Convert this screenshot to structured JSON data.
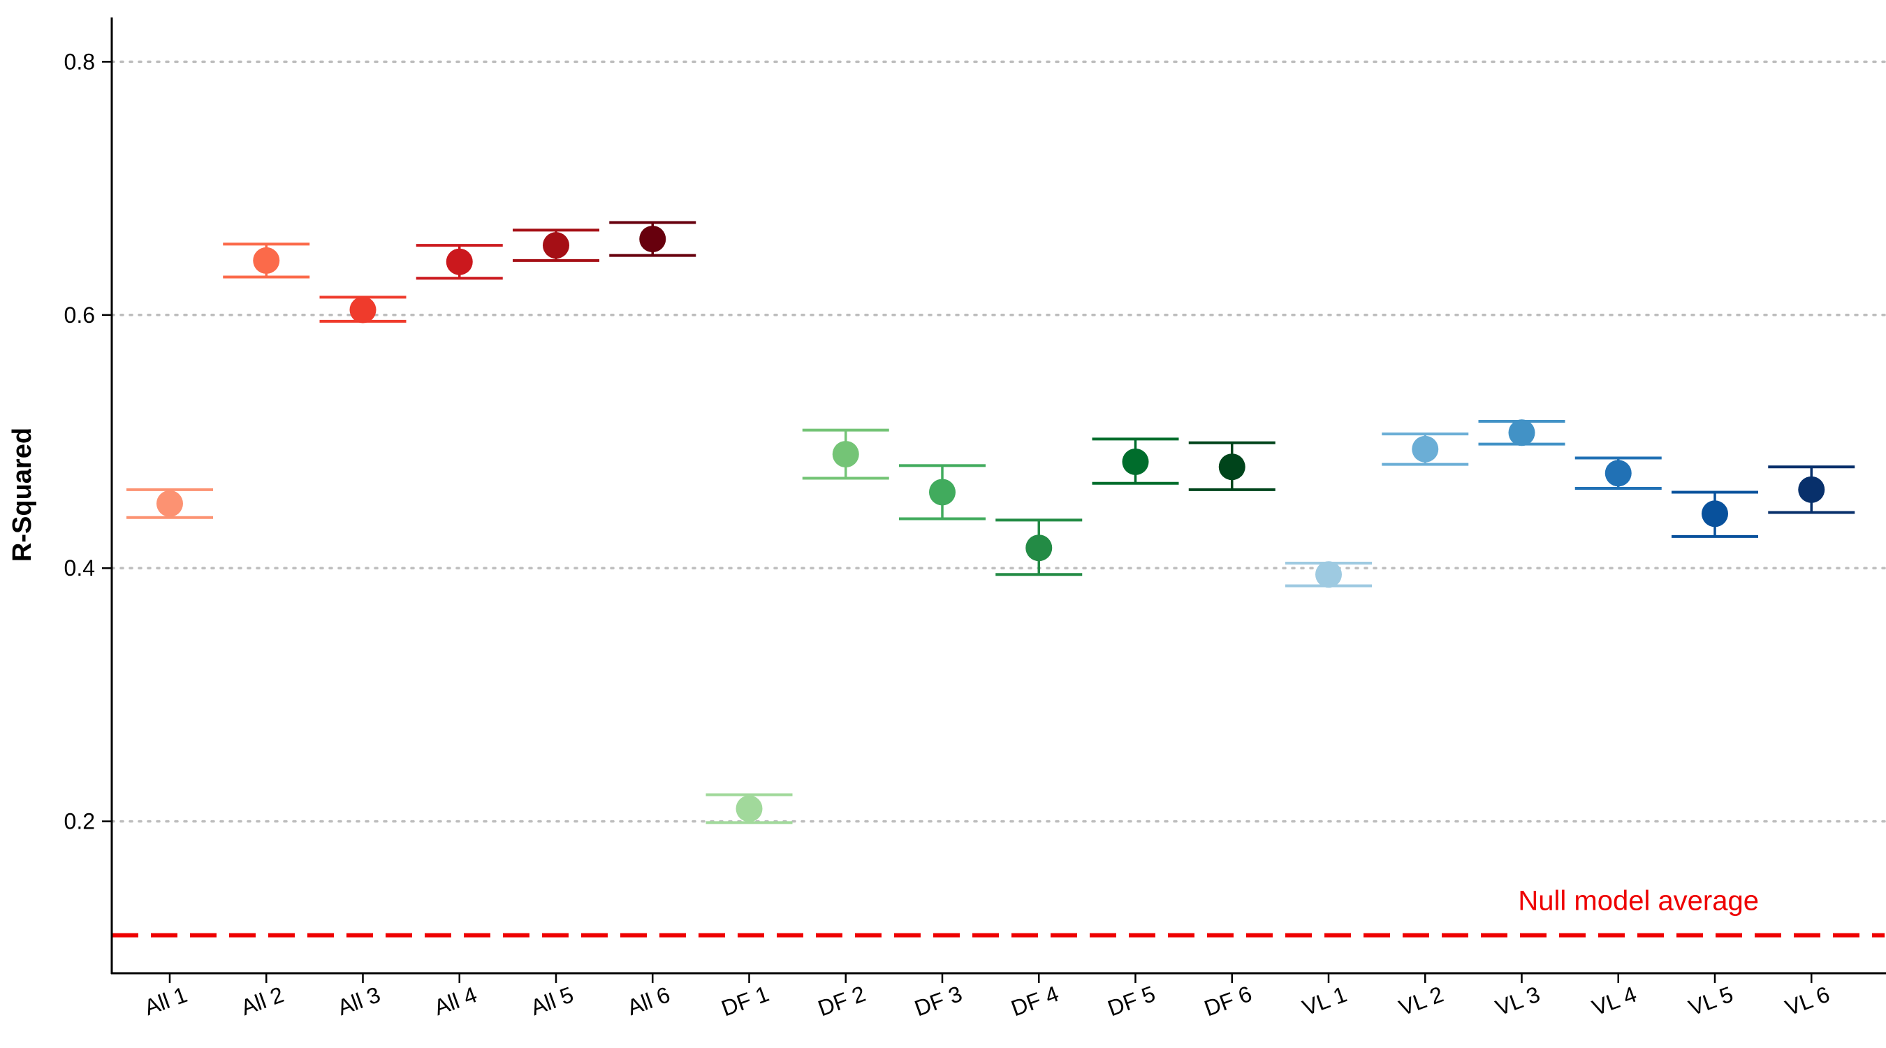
{
  "chart_data": {
    "type": "scatter",
    "title": "",
    "xlabel": "",
    "ylabel": "R-Squared",
    "ylim": [
      0.08,
      0.835
    ],
    "yticks": [
      0.2,
      0.4,
      0.6,
      0.8
    ],
    "grid": "horizontal dotted at y ticks",
    "categories": [
      "All 1",
      "All 2",
      "All 3",
      "All 4",
      "All 5",
      "All 6",
      "DF 1",
      "DF 2",
      "DF 3",
      "DF 4",
      "DF 5",
      "DF 6",
      "VL 1",
      "VL 2",
      "VL 3",
      "VL 4",
      "VL 5",
      "VL 6"
    ],
    "values": [
      0.451,
      0.643,
      0.604,
      0.642,
      0.655,
      0.66,
      0.21,
      0.49,
      0.46,
      0.416,
      0.484,
      0.48,
      0.395,
      0.494,
      0.507,
      0.475,
      0.443,
      0.462
    ],
    "error_low": [
      0.44,
      0.63,
      0.595,
      0.629,
      0.643,
      0.647,
      0.199,
      0.471,
      0.439,
      0.395,
      0.467,
      0.462,
      0.386,
      0.482,
      0.498,
      0.463,
      0.425,
      0.444
    ],
    "error_high": [
      0.462,
      0.656,
      0.614,
      0.655,
      0.667,
      0.673,
      0.221,
      0.509,
      0.481,
      0.438,
      0.502,
      0.499,
      0.404,
      0.506,
      0.516,
      0.487,
      0.46,
      0.48
    ],
    "colors": [
      "#fc9272",
      "#fb6a4a",
      "#ef3b2c",
      "#cb181d",
      "#a50f15",
      "#67000d",
      "#a1d99b",
      "#74c476",
      "#41ab5d",
      "#238b45",
      "#006d2c",
      "#00441b",
      "#9ecae1",
      "#6baed6",
      "#4292c6",
      "#2171b5",
      "#08519c",
      "#08306b"
    ],
    "reference_line": {
      "value": 0.11,
      "label": "Null model average",
      "color": "#ee0000",
      "style": "dashed"
    }
  }
}
